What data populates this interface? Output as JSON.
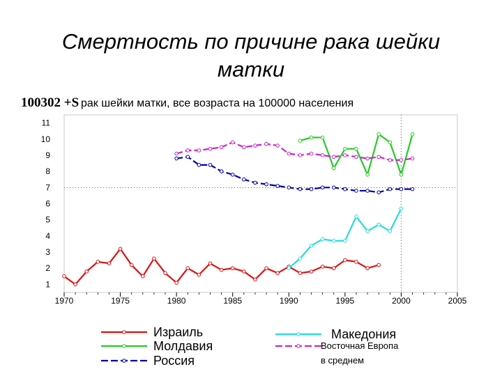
{
  "page": {
    "title_line1": "Смертность по причине рака шейки",
    "title_line2": "матки",
    "code_label": "100302 +S",
    "subtitle": "рак шейки матки, все возраста на 100000 населения"
  },
  "chart_data": {
    "type": "line",
    "title": "",
    "xlabel": "",
    "ylabel": "",
    "xlim": [
      1970,
      2005
    ],
    "ylim": [
      0.5,
      11.5
    ],
    "x_ticks": [
      "1970",
      "1975",
      "1980",
      "1985",
      "1990",
      "1995",
      "2000",
      "2005"
    ],
    "y_ticks": [
      "1",
      "2",
      "3",
      "4",
      "5",
      "6",
      "7",
      "8",
      "9",
      "10",
      "11"
    ],
    "grid": "dotted reference lines at y=7 and x=2000",
    "series": [
      {
        "name": "Израиль",
        "color": "#dd1111",
        "x": [
          1970,
          1971,
          1972,
          1973,
          1974,
          1975,
          1976,
          1977,
          1978,
          1979,
          1980,
          1981,
          1982,
          1983,
          1984,
          1985,
          1986,
          1987,
          1988,
          1989,
          1990,
          1991,
          1992,
          1993,
          1994,
          1995,
          1996,
          1997,
          1998
        ],
        "values": [
          1.5,
          1.0,
          1.8,
          2.4,
          2.3,
          3.2,
          2.2,
          1.5,
          2.6,
          1.7,
          1.1,
          2.0,
          1.6,
          2.3,
          1.9,
          2.0,
          1.8,
          1.3,
          2.0,
          1.7,
          2.1,
          1.7,
          1.8,
          2.1,
          2.0,
          2.5,
          2.4,
          2.0,
          2.2
        ]
      },
      {
        "name": "Молдавия",
        "color": "#22cc22",
        "x": [
          1991,
          1992,
          1993,
          1994,
          1995,
          1996,
          1997,
          1998,
          1999,
          2000,
          2001
        ],
        "values": [
          9.9,
          10.1,
          10.1,
          8.2,
          9.4,
          9.4,
          7.8,
          10.3,
          9.8,
          7.8,
          10.3
        ]
      },
      {
        "name": "Россия",
        "color": "#0000aa",
        "x": [
          1980,
          1981,
          1982,
          1983,
          1984,
          1985,
          1986,
          1987,
          1988,
          1989,
          1990,
          1991,
          1992,
          1993,
          1994,
          1995,
          1996,
          1997,
          1998,
          1999,
          2000,
          2001
        ],
        "values": [
          8.8,
          8.9,
          8.4,
          8.4,
          8.0,
          7.8,
          7.5,
          7.3,
          7.2,
          7.1,
          7.0,
          6.9,
          6.9,
          7.0,
          7.0,
          6.9,
          6.8,
          6.8,
          6.7,
          6.9,
          6.9,
          6.9
        ]
      },
      {
        "name": "Македония",
        "color": "#22dddd",
        "x": [
          1990,
          1991,
          1992,
          1993,
          1994,
          1995,
          1996,
          1997,
          1998,
          1999,
          2000
        ],
        "values": [
          2.0,
          2.6,
          3.4,
          3.8,
          3.7,
          3.7,
          5.2,
          4.3,
          4.7,
          4.3,
          5.7
        ]
      },
      {
        "name": "Восточная Европа в среднем",
        "color": "#cc22cc",
        "x": [
          1980,
          1981,
          1982,
          1983,
          1984,
          1985,
          1986,
          1987,
          1988,
          1989,
          1990,
          1991,
          1992,
          1993,
          1994,
          1995,
          1996,
          1997,
          1998,
          1999,
          2000,
          2001
        ],
        "values": [
          9.1,
          9.3,
          9.3,
          9.4,
          9.5,
          9.8,
          9.5,
          9.6,
          9.7,
          9.6,
          9.1,
          9.0,
          9.1,
          9.0,
          8.9,
          9.0,
          8.9,
          8.8,
          8.9,
          8.7,
          8.7,
          8.8
        ]
      }
    ],
    "legend": [
      {
        "label": "Израиль",
        "color": "#dd1111",
        "pattern": "solid"
      },
      {
        "label": "Молдавия",
        "color": "#22cc22",
        "pattern": "solid"
      },
      {
        "label": "Россия",
        "color": "#0000aa",
        "pattern": "dash"
      },
      {
        "label": "Македония",
        "color": "#22dddd",
        "pattern": "solid"
      },
      {
        "label": "Восточная Европа",
        "label_line2": "в среднем",
        "color": "#cc22cc",
        "pattern": "dash"
      }
    ],
    "legend_position": "bottom"
  }
}
